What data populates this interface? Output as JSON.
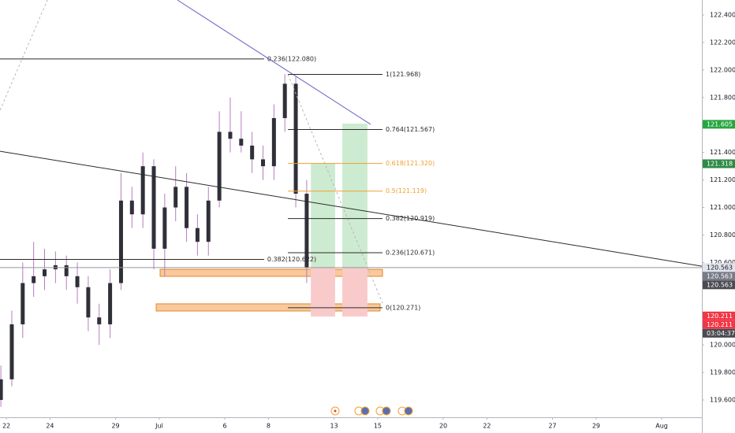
{
  "chart_data": {
    "type": "candlestick",
    "xlim": [
      -0.29,
      31.84
    ],
    "ylim": [
      119.474,
      122.509
    ],
    "xticks": [
      {
        "value": 0,
        "label": "22"
      },
      {
        "value": 2,
        "label": "24"
      },
      {
        "value": 5,
        "label": "29"
      },
      {
        "value": 7,
        "label": "Jul"
      },
      {
        "value": 10,
        "label": "6"
      },
      {
        "value": 12,
        "label": "8"
      },
      {
        "value": 15,
        "label": "13"
      },
      {
        "value": 17,
        "label": "15"
      },
      {
        "value": 20,
        "label": "20"
      },
      {
        "value": 22,
        "label": "22"
      },
      {
        "value": 25,
        "label": "27"
      },
      {
        "value": 27,
        "label": "29"
      },
      {
        "value": 30,
        "label": "Aug"
      }
    ],
    "yticks": [
      {
        "value": 122.4,
        "label": "122.400"
      },
      {
        "value": 122.2,
        "label": "122.200"
      },
      {
        "value": 122.0,
        "label": "122.000"
      },
      {
        "value": 121.8,
        "label": "121.800"
      },
      {
        "value": 121.4,
        "label": "121.400"
      },
      {
        "value": 121.2,
        "label": "121.200"
      },
      {
        "value": 121.0,
        "label": "121.000"
      },
      {
        "value": 120.8,
        "label": "120.800"
      },
      {
        "value": 120.6,
        "label": "120.600"
      },
      {
        "value": 120.0,
        "label": "120.000"
      },
      {
        "value": 119.8,
        "label": "119.800"
      },
      {
        "value": 119.6,
        "label": "119.600"
      }
    ],
    "body_color": "#2f3038",
    "wick_color": "#b77cc0",
    "x": [
      -0.25,
      0.25,
      0.75,
      1.25,
      1.75,
      2.25,
      2.75,
      3.25,
      3.75,
      4.25,
      4.75,
      5.25,
      5.75,
      6.25,
      6.75,
      7.25,
      7.75,
      8.25,
      8.75,
      9.25,
      9.75,
      10.25,
      10.75,
      11.25,
      11.75,
      12.25,
      12.75,
      13.25,
      13.75
    ],
    "open": [
      119.6,
      119.75,
      120.15,
      120.45,
      120.5,
      120.55,
      120.58,
      120.5,
      120.42,
      120.2,
      120.15,
      120.45,
      121.05,
      120.95,
      121.3,
      120.7,
      121.0,
      121.15,
      120.85,
      120.75,
      121.05,
      121.55,
      121.5,
      121.45,
      121.35,
      121.3,
      121.65,
      121.9,
      121.1
    ],
    "high": [
      119.85,
      120.25,
      120.6,
      120.75,
      120.7,
      120.68,
      120.65,
      120.6,
      120.5,
      120.3,
      120.55,
      121.25,
      121.15,
      121.4,
      121.35,
      121.1,
      121.3,
      121.25,
      120.95,
      121.15,
      121.7,
      121.8,
      121.7,
      121.55,
      121.45,
      121.75,
      121.97,
      121.95,
      121.2
    ],
    "low": [
      119.55,
      119.7,
      120.05,
      120.35,
      120.4,
      120.45,
      120.4,
      120.3,
      120.1,
      120.0,
      120.05,
      120.4,
      120.85,
      120.85,
      120.55,
      120.5,
      120.9,
      120.75,
      120.65,
      120.65,
      121.0,
      121.4,
      121.4,
      121.25,
      121.2,
      121.2,
      121.55,
      121.0,
      120.45
    ],
    "close": [
      119.75,
      120.15,
      120.45,
      120.5,
      120.55,
      120.58,
      120.5,
      120.42,
      120.2,
      120.15,
      120.45,
      121.05,
      120.95,
      121.3,
      120.7,
      121.0,
      121.15,
      120.85,
      120.75,
      121.05,
      121.55,
      121.5,
      121.45,
      121.35,
      121.3,
      121.65,
      121.9,
      121.1,
      120.56
    ],
    "drawings": [
      {
        "kind": "rect",
        "x": [
          7.04,
          17.22
        ],
        "y": [
          120.55,
          120.499
        ],
        "color": "#f8c08a",
        "stroke": "#e0892a"
      },
      {
        "kind": "rect",
        "x": [
          6.86,
          17.11
        ],
        "y": [
          120.299,
          120.247
        ],
        "color": "#f8c08a",
        "stroke": "#e0892a"
      },
      {
        "kind": "rect",
        "x": [
          13.94,
          15.05
        ],
        "y": [
          121.323,
          120.562
        ],
        "color": "#cdebd0"
      },
      {
        "kind": "rect",
        "x": [
          13.94,
          15.05
        ],
        "y": [
          120.562,
          120.207
        ],
        "color": "#f9caca"
      },
      {
        "kind": "rect",
        "x": [
          15.38,
          16.53
        ],
        "y": [
          121.61,
          120.562
        ],
        "color": "#cdebd0"
      },
      {
        "kind": "rect",
        "x": [
          15.38,
          16.53
        ],
        "y": [
          120.562,
          120.207
        ],
        "color": "#f9caca"
      },
      {
        "kind": "line",
        "x": [
          -0.29,
          31.84
        ],
        "y": [
          120.563,
          120.563
        ],
        "color": "#9598a1"
      },
      {
        "kind": "line",
        "x": [
          -0.29,
          31.84
        ],
        "y": [
          121.409,
          120.573
        ],
        "color": "#2a2a2a"
      },
      {
        "kind": "line",
        "x": [
          7.83,
          16.68
        ],
        "y": [
          122.509,
          121.604
        ],
        "color": "#6c63c4"
      },
      {
        "kind": "line",
        "x": [
          -0.29,
          1.88
        ],
        "y": [
          121.707,
          122.509
        ],
        "color": "#b8b8b8",
        "dashed": true
      },
      {
        "kind": "line",
        "x": [
          12.89,
          17.22
        ],
        "y": [
          121.968,
          120.304
        ],
        "color": "#b8b8b8",
        "dashed": true
      }
    ],
    "fibs": [
      {
        "x": [
          -0.29,
          11.8
        ],
        "levels": [
          {
            "value": 122.08,
            "label": "0.236(122.080)",
            "color": "#2a2a2a"
          },
          {
            "value": 120.622,
            "label": "0.382(120.622)",
            "color": "#2a2a2a"
          }
        ]
      },
      {
        "x": [
          12.89,
          17.22
        ],
        "levels": [
          {
            "value": 121.968,
            "label": "1(121.968)",
            "color": "#2a2a2a"
          },
          {
            "value": 121.567,
            "label": "0.764(121.567)",
            "color": "#2a2a2a"
          },
          {
            "value": 121.32,
            "label": "0.618(121.320)",
            "color": "#f0a030"
          },
          {
            "value": 121.119,
            "label": "0.5(121.119)",
            "color": "#f0a030"
          },
          {
            "value": 120.919,
            "label": "0.382(120.919)",
            "color": "#2a2a2a"
          },
          {
            "value": 120.671,
            "label": "0.236(120.671)",
            "color": "#2a2a2a"
          },
          {
            "value": 120.271,
            "label": "0(120.271)",
            "color": "#2a2a2a"
          }
        ]
      }
    ],
    "price_labels": [
      {
        "value": 121.605,
        "label": "121.605",
        "color": "#26a641"
      },
      {
        "value": 121.318,
        "label": "121.318",
        "color": "#2e8b45"
      },
      {
        "value": 120.563,
        "label": "120.563",
        "color": "#e0e3eb"
      },
      {
        "value": 120.563,
        "label": "120.563",
        "color": "#787b86"
      },
      {
        "value": 120.563,
        "label": "120.563",
        "color": "#4a4b52"
      },
      {
        "value": 120.211,
        "label": "120.211",
        "color": "#f23645"
      },
      {
        "value": 120.211,
        "label": "120.211",
        "color": "#f23645"
      }
    ],
    "countdown": "03:04:37"
  }
}
